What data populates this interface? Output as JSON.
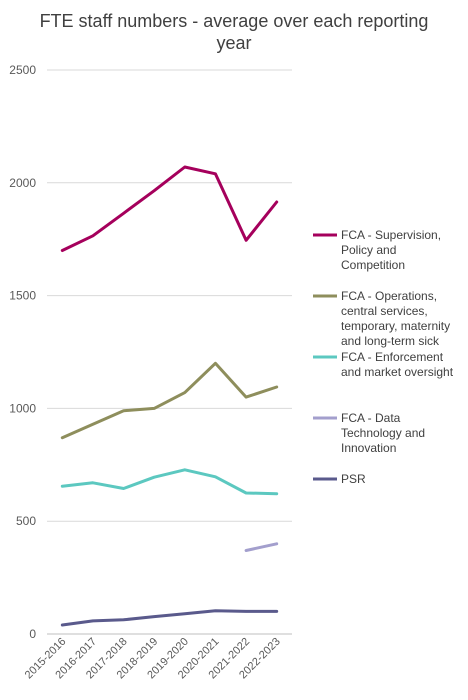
{
  "chart_data": {
    "type": "line",
    "title": "FTE staff numbers - average over each reporting year",
    "xlabel": "",
    "ylabel": "",
    "ylim": [
      0,
      2500
    ],
    "yticks": [
      0,
      500,
      1000,
      1500,
      2000,
      2500
    ],
    "grid": true,
    "legend_position": "right",
    "categories": [
      "2015-2016",
      "2016-2017",
      "2017-2018",
      "2018-2019",
      "2019-2020",
      "2020-2021",
      "2021-2022",
      "2022-2023"
    ],
    "series": [
      {
        "name": "FCA - Supervision, Policy and Competition",
        "legend_lines": [
          "FCA - Supervision,",
          "Policy and",
          "Competition"
        ],
        "color": "#a5005c",
        "values": [
          1700,
          1765,
          1865,
          1965,
          2070,
          2040,
          1745,
          1915
        ]
      },
      {
        "name": "FCA - Operations, central services, temporary, maternity and long-term sick",
        "legend_lines": [
          "FCA - Operations,",
          "central services,",
          "temporary, maternity",
          "and long-term sick"
        ],
        "color": "#8e8e5c",
        "values": [
          870,
          930,
          990,
          1000,
          1070,
          1200,
          1050,
          1095
        ]
      },
      {
        "name": "FCA - Enforcement and market oversight",
        "legend_lines": [
          "FCA - Enforcement",
          "and market oversight"
        ],
        "color": "#5cc8c0",
        "values": [
          655,
          670,
          645,
          695,
          728,
          697,
          625,
          622
        ]
      },
      {
        "name": "FCA - Data Technology and Innovation",
        "legend_lines": [
          "FCA - Data",
          "Technology and",
          "Innovation"
        ],
        "color": "#a39fcd",
        "values": [
          null,
          null,
          null,
          null,
          null,
          null,
          370,
          400
        ]
      },
      {
        "name": "PSR",
        "legend_lines": [
          "PSR"
        ],
        "color": "#5a5a8c",
        "values": [
          40,
          58,
          63,
          77,
          90,
          103,
          100,
          100
        ]
      }
    ]
  }
}
